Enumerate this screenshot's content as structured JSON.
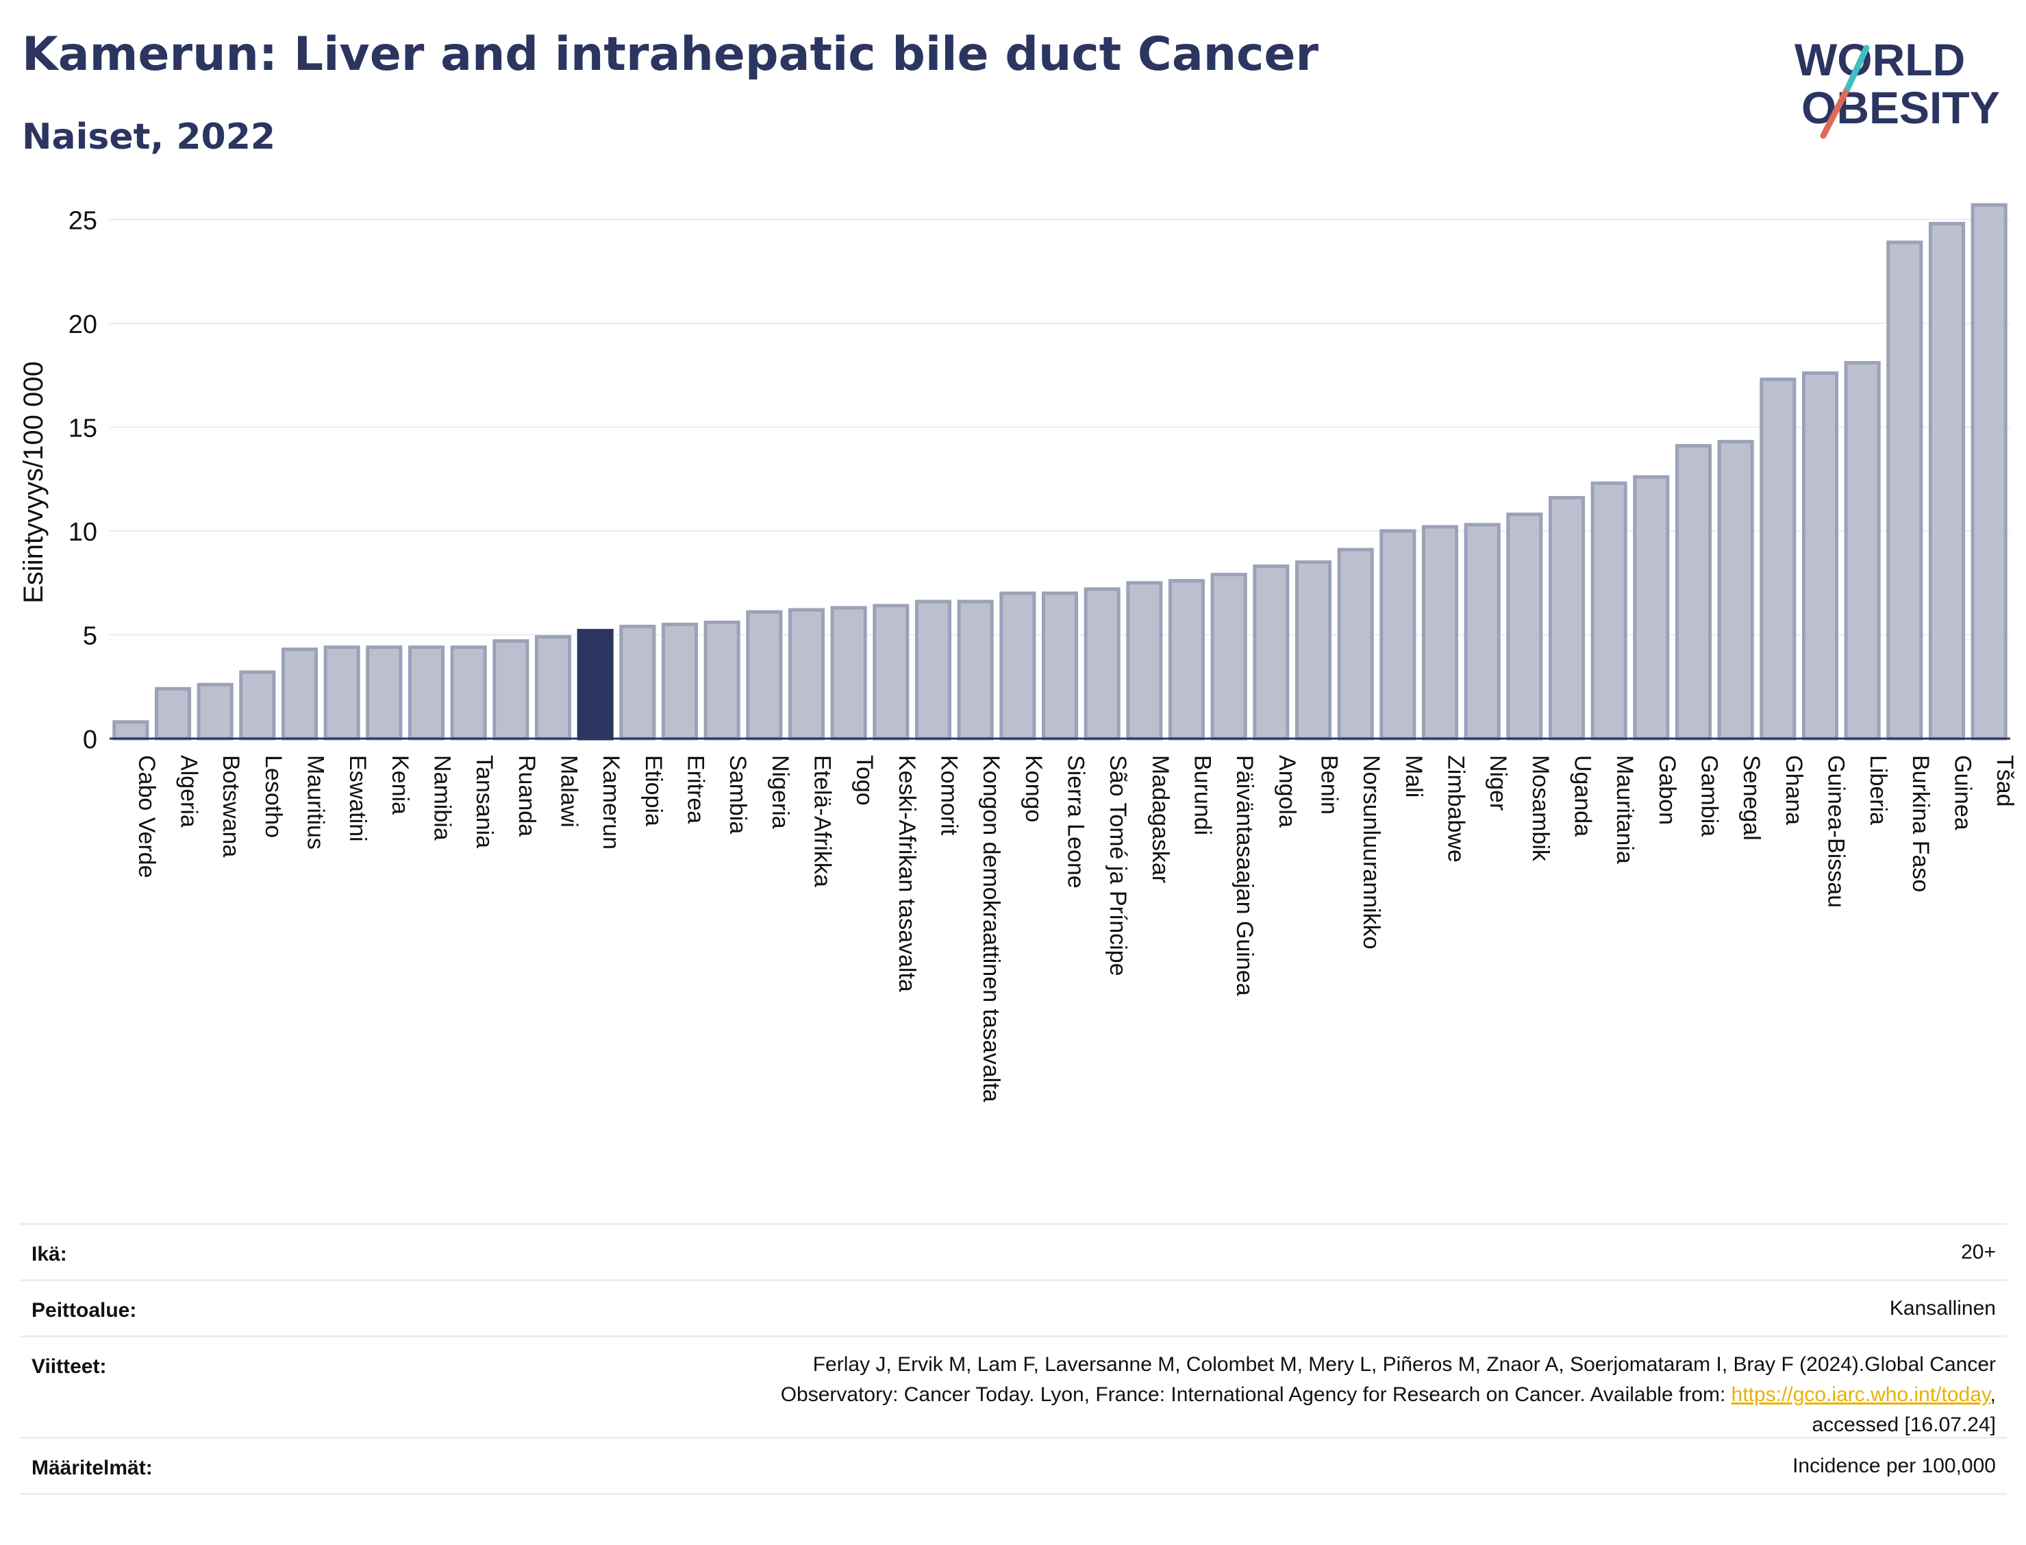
{
  "header": {
    "title": "Kamerun: Liver and intrahepatic bile duct Cancer",
    "subtitle": "Naiset, 2022"
  },
  "logo": {
    "line1": "WORLD",
    "line2": "OBESITY"
  },
  "colors": {
    "title": "#2b3560",
    "bar_default": "#bcc0ce",
    "bar_default_stroke": "#9ba2b8",
    "bar_highlight": "#2b3560",
    "logo_teal": "#3fbfbf",
    "logo_red": "#e06a5a",
    "link": "#e8b000"
  },
  "chart_data": {
    "type": "bar",
    "ylabel": "Esiintyvyys/100 000",
    "ylim": [
      0,
      26
    ],
    "yticks": [
      0,
      5,
      10,
      15,
      20,
      25
    ],
    "grid": true,
    "highlight": "Kamerun",
    "categories": [
      "Cabo Verde",
      "Algeria",
      "Botswana",
      "Lesotho",
      "Mauritius",
      "Eswatini",
      "Kenia",
      "Namibia",
      "Tansania",
      "Ruanda",
      "Malawi",
      "Kamerun",
      "Etiopia",
      "Eritrea",
      "Sambia",
      "Nigeria",
      "Etelä-Afrikka",
      "Togo",
      "Keski-Afrikan tasavalta",
      "Komorit",
      "Kongon demokraattinen tasavalta",
      "Kongo",
      "Sierra Leone",
      "São Tomé ja Príncipe",
      "Madagaskar",
      "Burundi",
      "Päiväntasaajan Guinea",
      "Angola",
      "Benin",
      "Norsunluurannikko",
      "Mali",
      "Zimbabwe",
      "Niger",
      "Mosambik",
      "Uganda",
      "Mauritania",
      "Gabon",
      "Gambia",
      "Senegal",
      "Ghana",
      "Guinea-Bissau",
      "Liberia",
      "Burkina Faso",
      "Guinea",
      "Tšad"
    ],
    "values": [
      0.8,
      2.4,
      2.6,
      3.2,
      4.3,
      4.4,
      4.4,
      4.4,
      4.4,
      4.7,
      4.9,
      5.2,
      5.4,
      5.5,
      5.6,
      6.1,
      6.2,
      6.3,
      6.4,
      6.6,
      6.6,
      7.0,
      7.0,
      7.2,
      7.5,
      7.6,
      7.9,
      8.3,
      8.5,
      9.1,
      10.0,
      10.2,
      10.3,
      10.8,
      11.6,
      12.3,
      12.6,
      14.1,
      14.3,
      17.3,
      17.6,
      18.1,
      23.9,
      24.8,
      25.7
    ]
  },
  "info": [
    {
      "label": "Ikä:",
      "value": "20+"
    },
    {
      "label": "Peittoalue:",
      "value": "Kansallinen"
    },
    {
      "label": "Viitteet:",
      "value_lines": [
        "Ferlay J, Ervik M, Lam F, Laversanne M, Colombet M, Mery L, Piñeros M, Znaor A, Soerjomataram I, Bray F (2024).Global Cancer",
        "Observatory: Cancer Today. Lyon, France: International Agency for Research on Cancer. Available from: ",
        "https://gco.iarc.who.int/today",
        ",",
        "accessed [16.07.24]"
      ]
    },
    {
      "label": "Määritelmät:",
      "value": "Incidence per 100,000"
    }
  ]
}
